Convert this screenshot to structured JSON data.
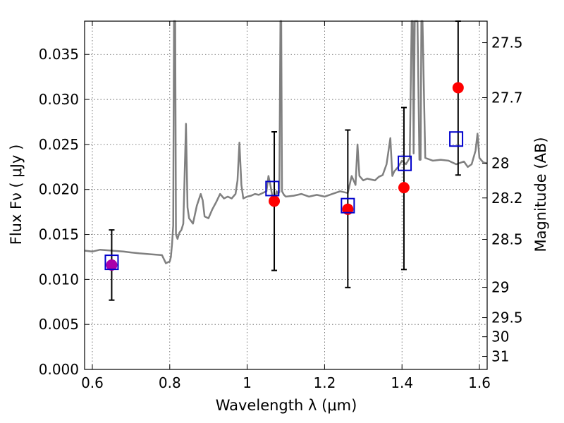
{
  "chart_data": {
    "type": "scatter",
    "xlabel": "Wavelength  λ (μm)",
    "ylabel": "Flux  Fν  ( μJy )",
    "y2label": "Magnitude (AB)",
    "xlim": [
      0.58,
      1.62
    ],
    "ylim": [
      0.0,
      0.0387
    ],
    "grid": true,
    "x_ticks": [
      0.6,
      0.8,
      1.0,
      1.2,
      1.4,
      1.6
    ],
    "x_tick_labels": [
      "0.6",
      "0.8",
      "1",
      "1.2",
      "1.4",
      "1.6"
    ],
    "y_ticks": [
      0.0,
      0.005,
      0.01,
      0.015,
      0.02,
      0.025,
      0.03,
      0.035
    ],
    "y_tick_labels": [
      "0.000",
      "0.005",
      "0.010",
      "0.015",
      "0.020",
      "0.025",
      "0.030",
      "0.035"
    ],
    "y2_ticks": [
      {
        "mag": 27.5,
        "label": "27.5"
      },
      {
        "mag": 27.7,
        "label": "27.7"
      },
      {
        "mag": 28.0,
        "label": "28"
      },
      {
        "mag": 28.2,
        "label": "28.2"
      },
      {
        "mag": 28.5,
        "label": "28.5"
      },
      {
        "mag": 29.0,
        "label": "29"
      },
      {
        "mag": 29.5,
        "label": "29.5"
      },
      {
        "mag": 30.0,
        "label": "30"
      },
      {
        "mag": 31.0,
        "label": "31"
      }
    ],
    "colors": {
      "spectrum": "#808080",
      "observed": "#ff0000",
      "model": "#0000cc",
      "errorbar": "#000000",
      "first_observed": "#aa00aa"
    },
    "spectrum": {
      "x": [
        0.58,
        0.6,
        0.62,
        0.65,
        0.68,
        0.7,
        0.72,
        0.75,
        0.78,
        0.79,
        0.8,
        0.803,
        0.806,
        0.809,
        0.811,
        0.812,
        0.814,
        0.816,
        0.82,
        0.825,
        0.83,
        0.835,
        0.838,
        0.842,
        0.846,
        0.85,
        0.86,
        0.87,
        0.88,
        0.885,
        0.89,
        0.9,
        0.91,
        0.92,
        0.93,
        0.94,
        0.95,
        0.96,
        0.97,
        0.975,
        0.98,
        0.985,
        0.99,
        1.0,
        1.01,
        1.02,
        1.03,
        1.04,
        1.05,
        1.055,
        1.06,
        1.064,
        1.068,
        1.072,
        1.076,
        1.08,
        1.083,
        1.086,
        1.088,
        1.09,
        1.095,
        1.1,
        1.12,
        1.14,
        1.16,
        1.18,
        1.2,
        1.22,
        1.24,
        1.26,
        1.27,
        1.28,
        1.285,
        1.29,
        1.3,
        1.31,
        1.33,
        1.34,
        1.35,
        1.36,
        1.37,
        1.375,
        1.38,
        1.39,
        1.4,
        1.41,
        1.42,
        1.425,
        1.428,
        1.43,
        1.433,
        1.44,
        1.445,
        1.448,
        1.45,
        1.453,
        1.46,
        1.48,
        1.5,
        1.52,
        1.54,
        1.56,
        1.57,
        1.58,
        1.59,
        1.595,
        1.6,
        1.61,
        1.62
      ],
      "y": [
        0.0132,
        0.0131,
        0.0133,
        0.0132,
        0.0131,
        0.013,
        0.0129,
        0.0128,
        0.0127,
        0.0118,
        0.012,
        0.0125,
        0.014,
        0.016,
        0.039,
        0.039,
        0.039,
        0.015,
        0.0145,
        0.0152,
        0.0155,
        0.0162,
        0.021,
        0.0273,
        0.018,
        0.0168,
        0.0162,
        0.0182,
        0.0195,
        0.0188,
        0.017,
        0.0168,
        0.0178,
        0.0186,
        0.0195,
        0.019,
        0.0192,
        0.019,
        0.0195,
        0.021,
        0.0252,
        0.0205,
        0.019,
        0.0192,
        0.0193,
        0.0195,
        0.0194,
        0.0196,
        0.0198,
        0.0215,
        0.0205,
        0.0195,
        0.0185,
        0.019,
        0.0198,
        0.0195,
        0.0197,
        0.039,
        0.039,
        0.0198,
        0.0194,
        0.0192,
        0.0193,
        0.0195,
        0.0192,
        0.0194,
        0.0192,
        0.0195,
        0.0198,
        0.0196,
        0.0215,
        0.0205,
        0.025,
        0.0215,
        0.021,
        0.0212,
        0.021,
        0.0214,
        0.0216,
        0.0228,
        0.0257,
        0.0215,
        0.022,
        0.0225,
        0.0232,
        0.0228,
        0.0235,
        0.039,
        0.039,
        0.024,
        0.039,
        0.039,
        0.0233,
        0.0233,
        0.039,
        0.039,
        0.0235,
        0.0232,
        0.0233,
        0.0232,
        0.0228,
        0.0231,
        0.0225,
        0.0228,
        0.0243,
        0.0262,
        0.0235,
        0.023,
        0.0229
      ]
    },
    "observed": [
      {
        "x": 0.65,
        "y": 0.0116,
        "ylo": 0.0077,
        "yhi": 0.0155
      },
      {
        "x": 1.07,
        "y": 0.0187,
        "ylo": 0.011,
        "yhi": 0.0264
      },
      {
        "x": 1.26,
        "y": 0.0178,
        "ylo": 0.0091,
        "yhi": 0.0266
      },
      {
        "x": 1.405,
        "y": 0.0202,
        "ylo": 0.0111,
        "yhi": 0.0291
      },
      {
        "x": 1.545,
        "y": 0.0313,
        "ylo": 0.0216,
        "yhi": 0.0387
      }
    ],
    "model": [
      {
        "x": 0.65,
        "y": 0.0119
      },
      {
        "x": 1.065,
        "y": 0.0201
      },
      {
        "x": 1.26,
        "y": 0.0182
      },
      {
        "x": 1.407,
        "y": 0.0229
      },
      {
        "x": 1.54,
        "y": 0.0256
      }
    ]
  }
}
